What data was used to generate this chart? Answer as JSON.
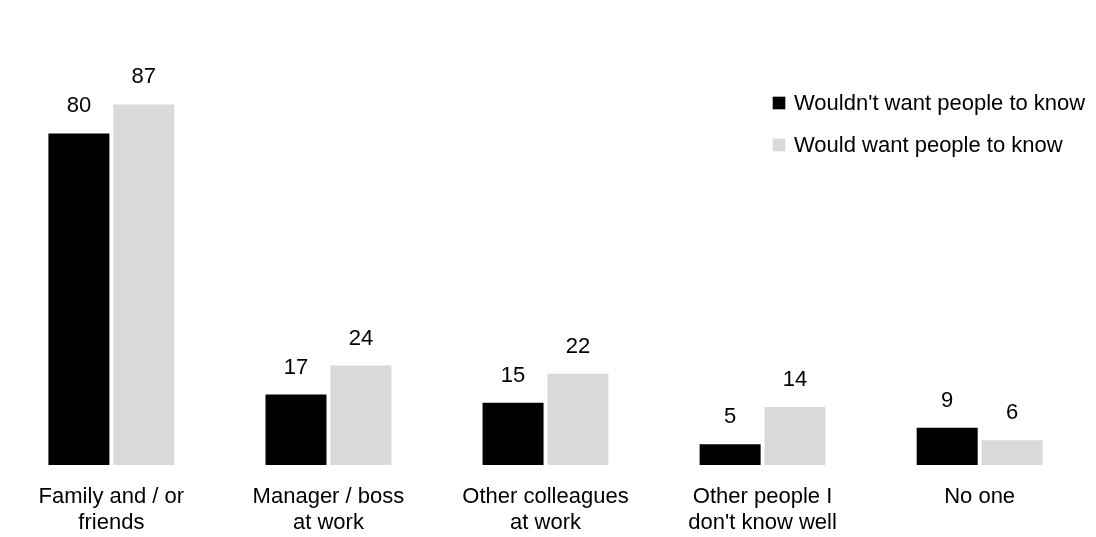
{
  "chart_data": {
    "type": "bar",
    "categories": [
      "Family and / or friends",
      "Manager / boss at work",
      "Other colleagues at work",
      "Other people I don't know well",
      "No one"
    ],
    "series": [
      {
        "name": "Wouldn't want people to know",
        "color": "#000000",
        "values": [
          80,
          17,
          15,
          5,
          9
        ]
      },
      {
        "name": "Would want people to know",
        "color": "#d9d9d9",
        "values": [
          87,
          24,
          22,
          14,
          6
        ]
      }
    ],
    "data_labels": true,
    "legend": "top right",
    "grid": false
  }
}
